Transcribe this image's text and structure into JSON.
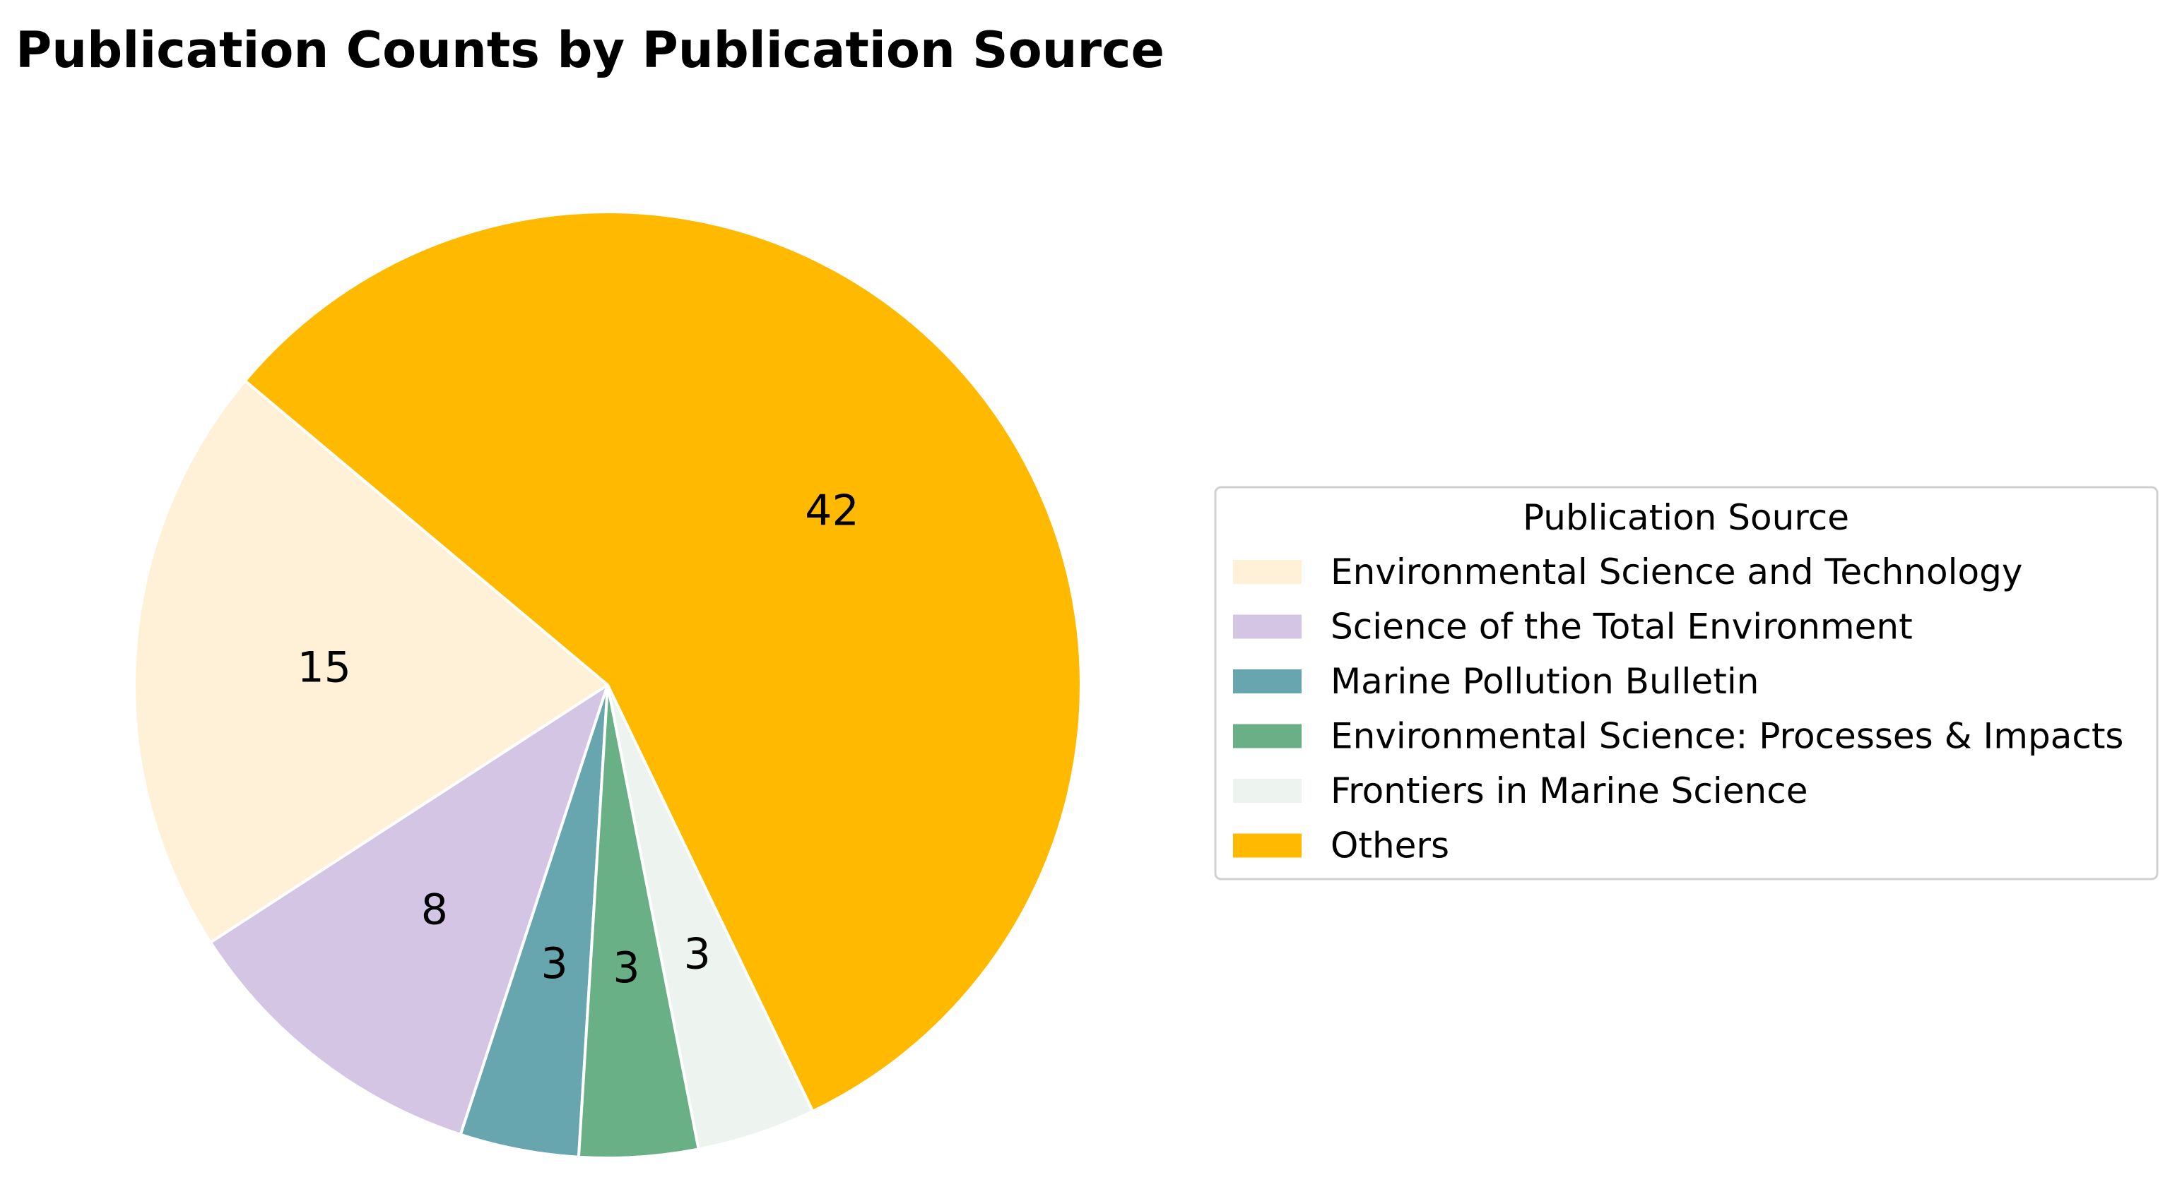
{
  "chart_data": {
    "type": "pie",
    "title": "Publication Counts by Publication Source",
    "legend_title": "Publication Source",
    "legend_position": "right",
    "start_angle_degrees": 140,
    "direction": "counterclockwise",
    "slices": [
      {
        "label": "Environmental Science and Technology",
        "value": 15,
        "color": "#fff1d8"
      },
      {
        "label": "Science of the Total Environment",
        "value": 8,
        "color": "#d4c5e5"
      },
      {
        "label": "Marine Pollution Bulletin",
        "value": 3,
        "color": "#67a6ae"
      },
      {
        "label": "Environmental Science: Processes & Impacts",
        "value": 3,
        "color": "#6ab087"
      },
      {
        "label": "Frontiers in Marine Science",
        "value": 3,
        "color": "#edf3ef"
      },
      {
        "label": "Others",
        "value": 42,
        "color": "#ffba00"
      }
    ]
  }
}
